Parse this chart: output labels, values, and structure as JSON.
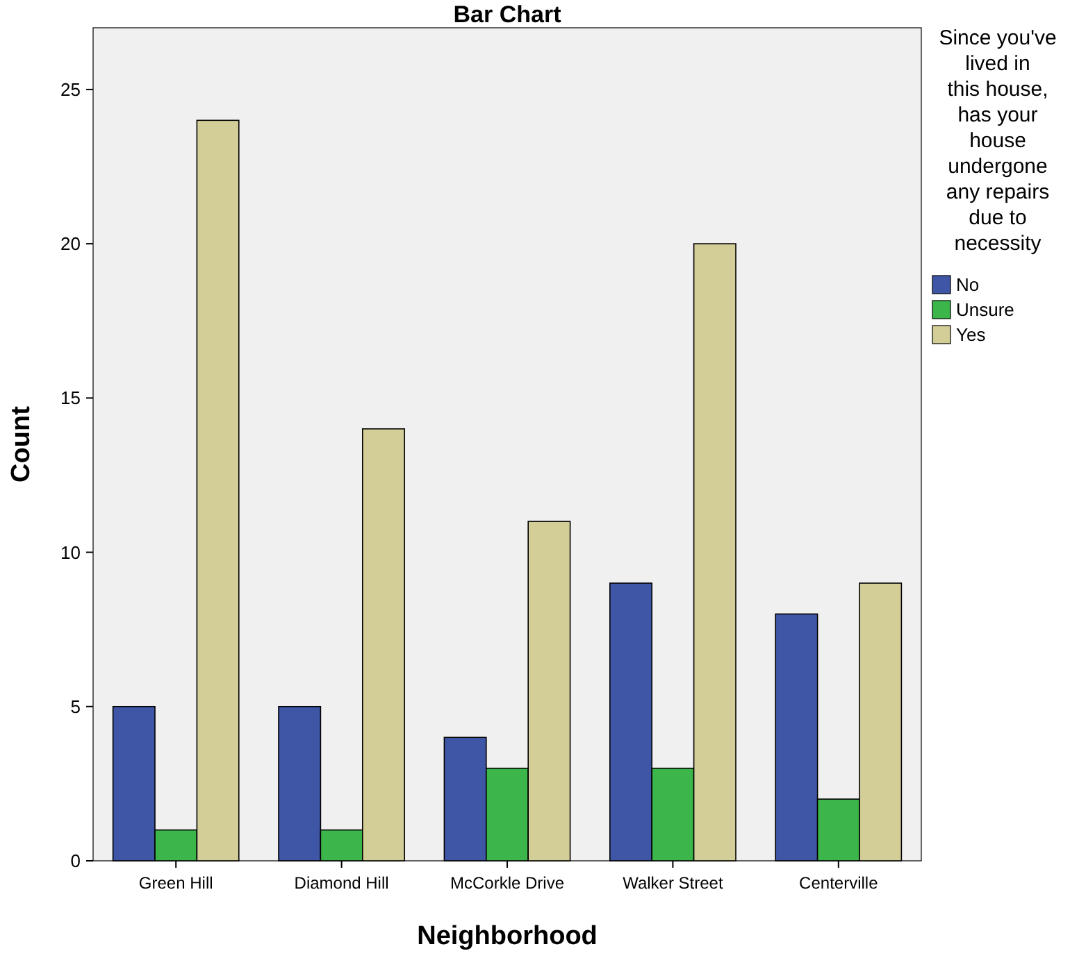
{
  "chart_data": {
    "type": "bar",
    "title": "Bar Chart",
    "xlabel": "Neighborhood",
    "ylabel": "Count",
    "legend_title": "Since you've lived in this house, has your house undergone any repairs due to necessity",
    "categories": [
      "Green Hill",
      "Diamond Hill",
      "McCorkle Drive",
      "Walker Street",
      "Centerville"
    ],
    "series": [
      {
        "name": "No",
        "color": "#3f55a5",
        "values": [
          5,
          5,
          4,
          9,
          8
        ]
      },
      {
        "name": "Unsure",
        "color": "#3cb54a",
        "values": [
          1,
          1,
          3,
          3,
          2
        ]
      },
      {
        "name": "Yes",
        "color": "#d3ce97",
        "values": [
          24,
          14,
          11,
          20,
          9
        ]
      }
    ],
    "ylim": [
      0,
      27
    ],
    "yticks": [
      0,
      5,
      10,
      15,
      20,
      25
    ],
    "legend": "top right",
    "grid": false
  }
}
